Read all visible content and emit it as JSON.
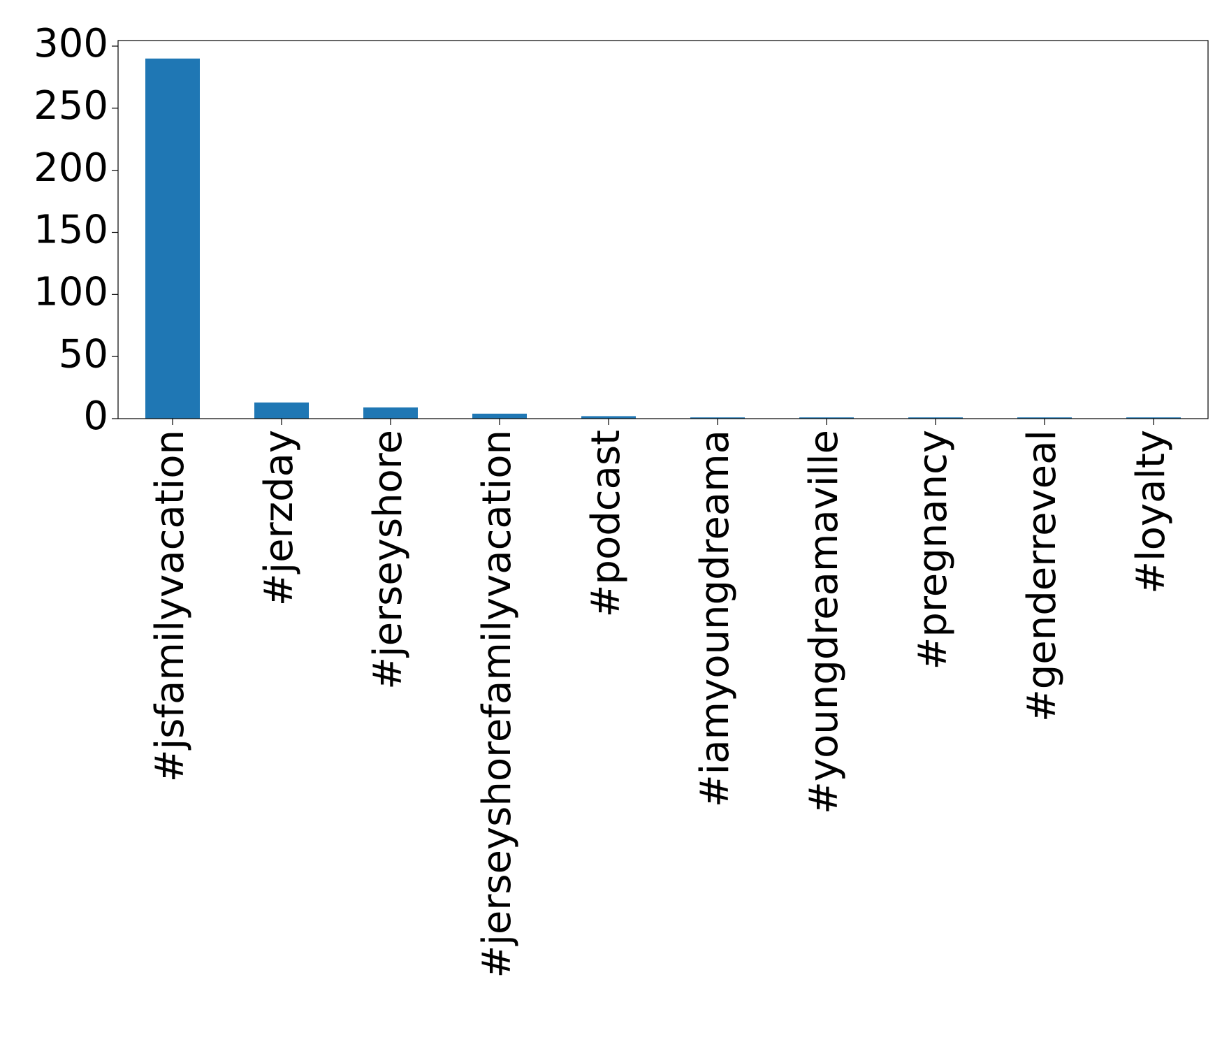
{
  "chart_data": {
    "type": "bar",
    "categories": [
      "#jsfamilyvacation",
      "#jerzday",
      "#jerseyshore",
      "#jerseyshorefamilyvacation",
      "#podcast",
      "#iamyoungdreama",
      "#youngdreamaville",
      "#pregnancy",
      "#genderreveal",
      "#loyalty"
    ],
    "values": [
      290,
      13,
      9,
      4,
      2,
      1,
      1,
      1,
      1,
      1
    ],
    "color": "#1f77b4",
    "ylim": [
      0,
      304.5
    ],
    "yticks": [
      0,
      50,
      100,
      150,
      200,
      250,
      300
    ],
    "grid": false
  }
}
